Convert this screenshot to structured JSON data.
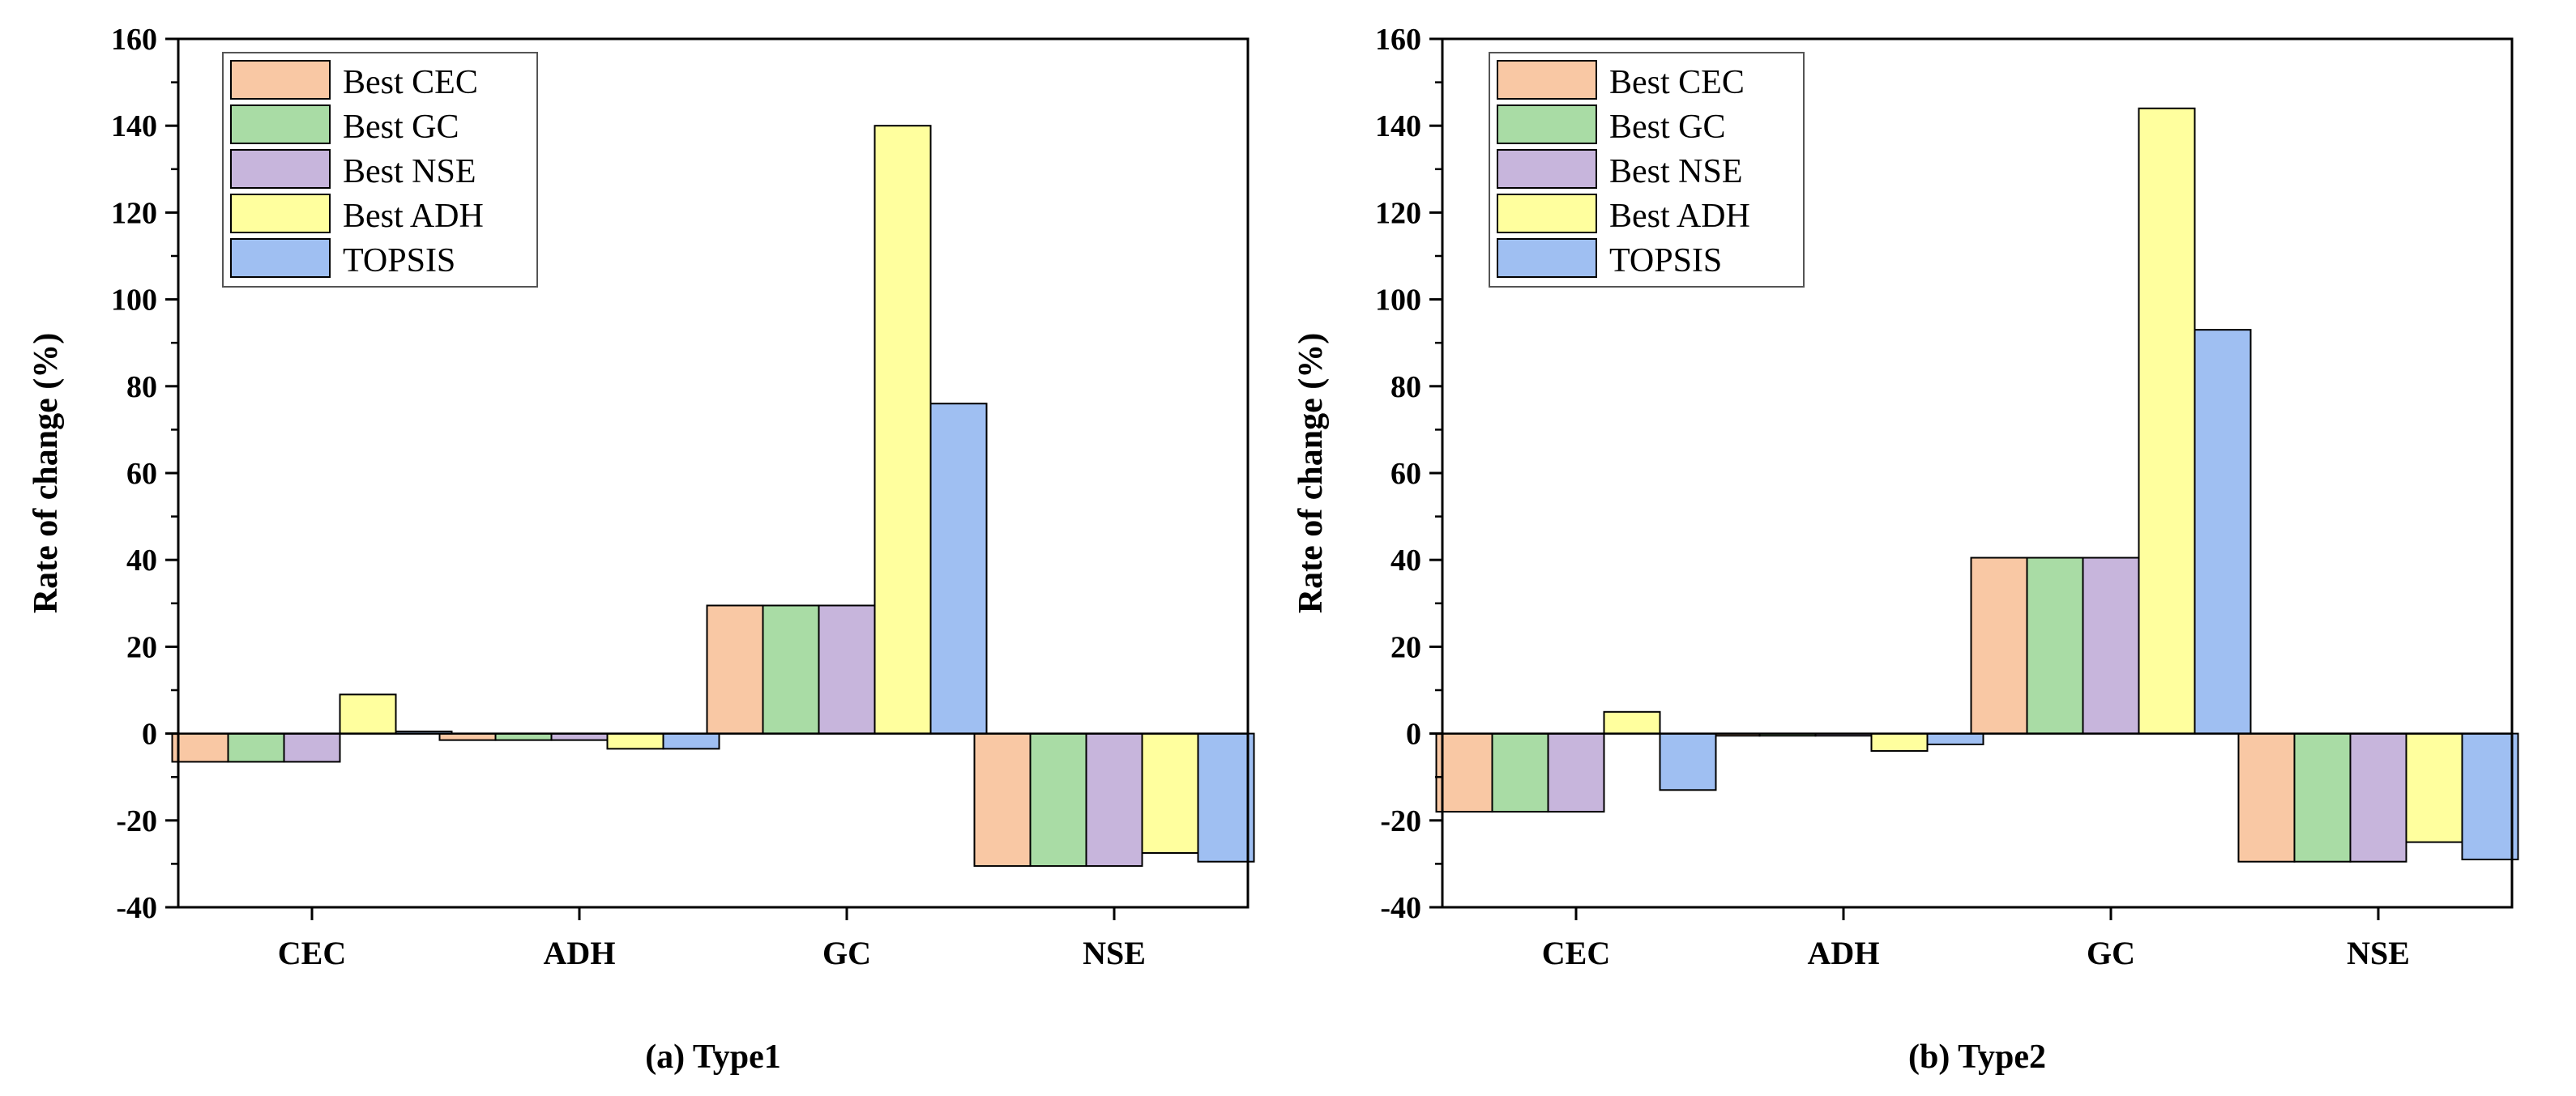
{
  "chart_data": [
    {
      "type": "bar",
      "caption": "(a) Type1",
      "ylabel": "Rate of change (%)",
      "xlabel": "",
      "ylim": [
        -40,
        160
      ],
      "yticks": [
        -40,
        -20,
        0,
        20,
        40,
        60,
        80,
        100,
        120,
        140,
        160
      ],
      "categories": [
        "CEC",
        "ADH",
        "GC",
        "NSE"
      ],
      "legend_position": "top-left",
      "grid": false,
      "series": [
        {
          "name": "Best CEC",
          "color": "#f9c8a4",
          "values": [
            -6.5,
            -1.5,
            29.5,
            -30.5
          ]
        },
        {
          "name": "Best GC",
          "color": "#a9dca5",
          "values": [
            -6.5,
            -1.5,
            29.5,
            -30.5
          ]
        },
        {
          "name": "Best NSE",
          "color": "#c7b5dc",
          "values": [
            -6.5,
            -1.5,
            29.5,
            -30.5
          ]
        },
        {
          "name": "Best ADH",
          "color": "#ffff9e",
          "values": [
            9,
            -3.5,
            140,
            -27.5
          ]
        },
        {
          "name": "TOPSIS",
          "color": "#9fbff2",
          "values": [
            0.5,
            -3.5,
            76,
            -29.5
          ]
        }
      ]
    },
    {
      "type": "bar",
      "caption": "(b) Type2",
      "ylabel": "Rate of change (%)",
      "xlabel": "",
      "ylim": [
        -40,
        160
      ],
      "yticks": [
        -40,
        -20,
        0,
        20,
        40,
        60,
        80,
        100,
        120,
        140,
        160
      ],
      "categories": [
        "CEC",
        "ADH",
        "GC",
        "NSE"
      ],
      "legend_position": "top-left",
      "grid": false,
      "series": [
        {
          "name": "Best CEC",
          "color": "#f9c8a4",
          "values": [
            -18,
            -0.5,
            40.5,
            -29.5
          ]
        },
        {
          "name": "Best GC",
          "color": "#a9dca5",
          "values": [
            -18,
            -0.5,
            40.5,
            -29.5
          ]
        },
        {
          "name": "Best NSE",
          "color": "#c7b5dc",
          "values": [
            -18,
            -0.5,
            40.5,
            -29.5
          ]
        },
        {
          "name": "Best ADH",
          "color": "#ffff9e",
          "values": [
            5,
            -4,
            144,
            -25
          ]
        },
        {
          "name": "TOPSIS",
          "color": "#9fbff2",
          "values": [
            -13,
            -2.5,
            93,
            -29
          ]
        }
      ]
    }
  ]
}
